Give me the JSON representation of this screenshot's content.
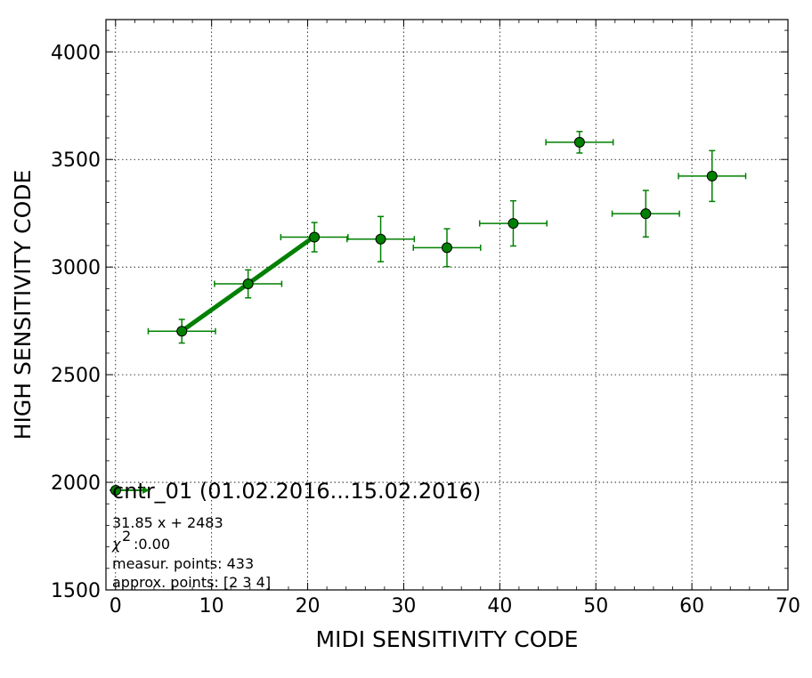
{
  "chart_data": {
    "type": "scatter",
    "xlabel": "MIDI SENSITIVITY CODE",
    "ylabel": "HIGH SENSITIVITY CODE",
    "xlim": [
      -1,
      70
    ],
    "ylim": [
      1500,
      4150
    ],
    "x_ticks": [
      0,
      10,
      20,
      30,
      40,
      50,
      60,
      70
    ],
    "y_ticks": [
      1500,
      2000,
      2500,
      3000,
      3500,
      4000
    ],
    "grid": true,
    "legend_position": "lower-left",
    "colors": {
      "points": "#008000",
      "fit_line": "#008000",
      "marker_edge": "#000000"
    },
    "series": [
      {
        "name": "cntr_01 (01.02.2016...15.02.2016)",
        "points": [
          {
            "x": 6.9,
            "y": 2702,
            "xerr": 3.5,
            "yerr": 55
          },
          {
            "x": 13.8,
            "y": 2922,
            "xerr": 3.5,
            "yerr": 65
          },
          {
            "x": 20.7,
            "y": 3139,
            "xerr": 3.5,
            "yerr": 68
          },
          {
            "x": 27.6,
            "y": 3130,
            "xerr": 3.5,
            "yerr": 105
          },
          {
            "x": 34.5,
            "y": 3090,
            "xerr": 3.5,
            "yerr": 88
          },
          {
            "x": 41.4,
            "y": 3203,
            "xerr": 3.5,
            "yerr": 105
          },
          {
            "x": 48.3,
            "y": 3580,
            "xerr": 3.5,
            "yerr": 50
          },
          {
            "x": 55.2,
            "y": 3248,
            "xerr": 3.5,
            "yerr": 108
          },
          {
            "x": 62.1,
            "y": 3423,
            "xerr": 3.5,
            "yerr": 118
          }
        ]
      }
    ],
    "fit": {
      "slope": 31.85,
      "intercept": 2483,
      "x_from": 6.9,
      "x_to": 20.7
    },
    "annotations": [
      "31.85 x + 2483",
      ":0.00",
      "measur. points: 433",
      "approx. points: [2 3 4]"
    ],
    "chi_symbol": "χ",
    "chi_sup": "2"
  }
}
